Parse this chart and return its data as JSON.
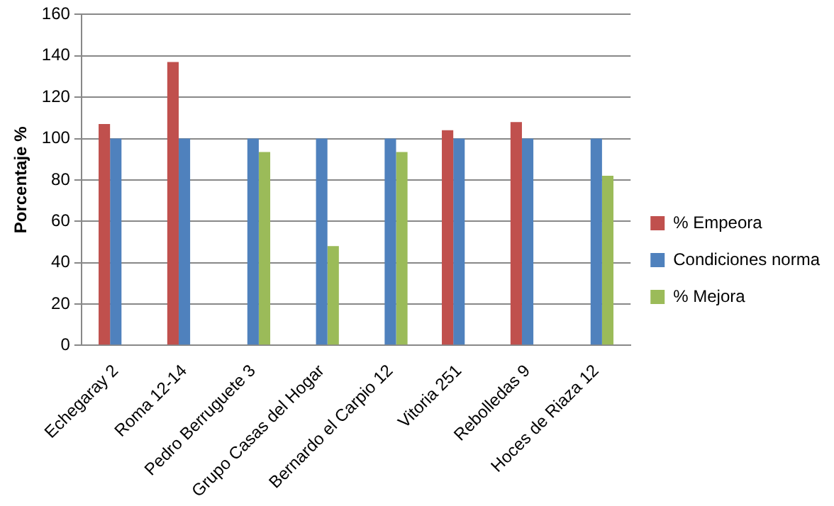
{
  "chart_data": {
    "type": "bar",
    "ylabel": "Porcentaje %",
    "categories": [
      "Echegaray 2",
      "Roma 12-14",
      "Pedro Berruguete 3",
      "Grupo Casas del Hogar",
      "Bernardo el Carpio 12",
      "Vitoria 251",
      "Rebolledas 9",
      "Hoces de Riaza 12"
    ],
    "series": [
      {
        "name": "% Empeora",
        "color": "#c0504d",
        "values": [
          107,
          137,
          null,
          null,
          null,
          104,
          108,
          null
        ]
      },
      {
        "name": "Condiciones norma",
        "color": "#4f81bd",
        "values": [
          100,
          100,
          100,
          100,
          100,
          100,
          100,
          100
        ]
      },
      {
        "name": "% Mejora",
        "color": "#9bbb59",
        "values": [
          null,
          null,
          93.5,
          48,
          93.5,
          null,
          null,
          82
        ]
      }
    ],
    "ylim": [
      0,
      160
    ],
    "yticks": [
      0,
      20,
      40,
      60,
      80,
      100,
      120,
      140,
      160
    ],
    "grid": "y",
    "legend": "right"
  }
}
